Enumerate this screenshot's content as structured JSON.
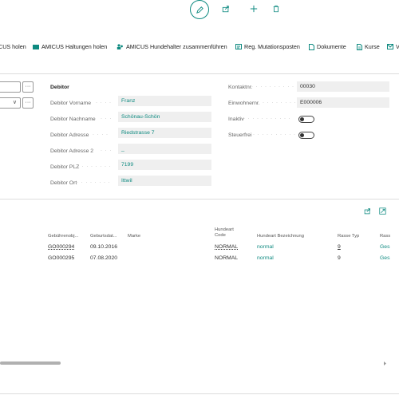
{
  "ribbon": {
    "items": [
      {
        "label": "CUS holen",
        "icon": "none"
      },
      {
        "label": "AMICUS Haltungen holen",
        "icon": "get-icon"
      },
      {
        "label": "AMICUS Hundehalter zusammenführen",
        "icon": "merge-icon"
      },
      {
        "label": "Reg. Mutationsposten",
        "icon": "register-icon"
      },
      {
        "label": "Dokumente",
        "icon": "document-icon"
      },
      {
        "label": "Kurse",
        "icon": "course-icon"
      },
      {
        "label": "V",
        "icon": "mail-icon"
      }
    ]
  },
  "form": {
    "debitor_label": "Debitor",
    "fields": [
      {
        "label": "Debitor Vorname",
        "value": "Franz"
      },
      {
        "label": "Debitor Nachname",
        "value": "Schönau-Schön"
      },
      {
        "label": "Debitor Adresse",
        "value": "Riedstrasse 7"
      },
      {
        "label": "Debitor Adresse 2",
        "value": "_"
      },
      {
        "label": "Debitor PLZ",
        "value": "7199"
      },
      {
        "label": "Debitor Ort",
        "value": "Ittwil"
      }
    ],
    "right_fields": [
      {
        "label": "Kontaktnr.",
        "value": "00030"
      },
      {
        "label": "Einwohnernr.",
        "value": "E000006"
      }
    ],
    "toggles": [
      {
        "label": "Inaktiv",
        "on": false
      },
      {
        "label": "Steuerfrei",
        "on": false
      }
    ],
    "more_glyph": "···",
    "chevron_glyph": "∨"
  },
  "grid": {
    "headers": [
      "Gebührenobj...",
      "Geburtsdat...",
      "Marke",
      "Hundeart Code",
      "Hundeart Bezeichnung",
      "Rasse Typ",
      "Rass"
    ],
    "rows": [
      [
        "GO000294",
        "09.10.2016",
        "",
        "NORMAL",
        "normal",
        "9",
        "Ges"
      ],
      [
        "GO000295",
        "07.08.2020",
        "",
        "NORMAL",
        "normal",
        "9",
        "Ges"
      ]
    ]
  },
  "colors": {
    "accent": "#0e8a80"
  }
}
